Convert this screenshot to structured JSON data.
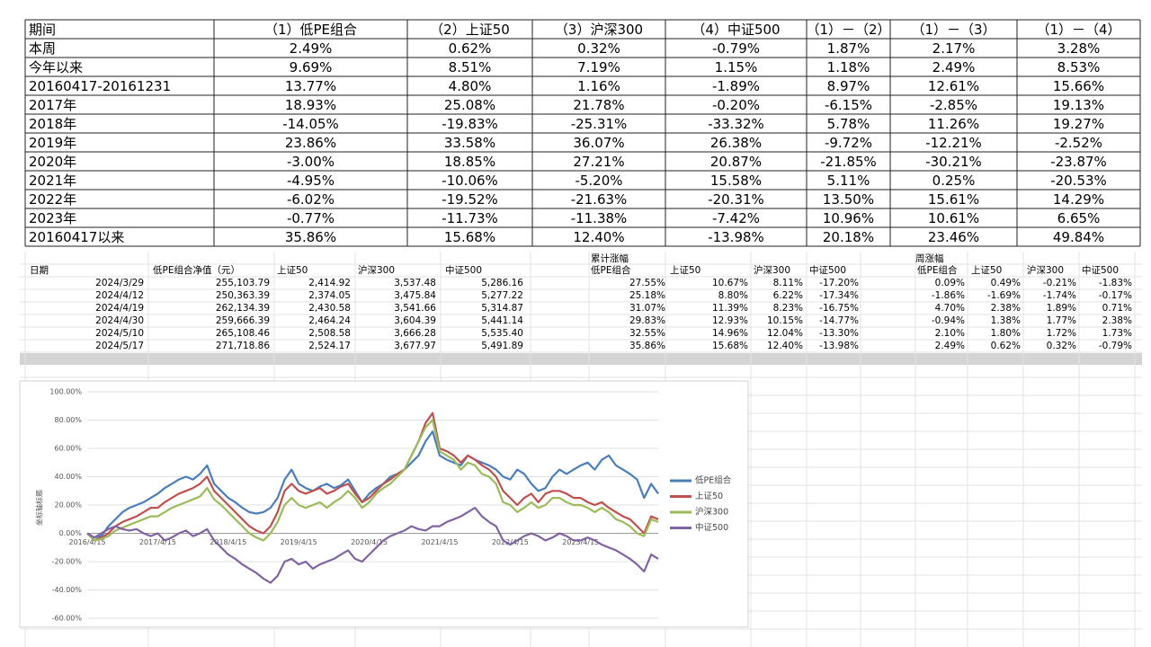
{
  "table": {
    "header": [
      "期间",
      "（1）低PE组合",
      "（2）上证50",
      "（3）沪深300",
      "（4）中证500",
      "（1）－（2）",
      "（1）－（3）",
      "（1）－（4）"
    ],
    "rows": [
      [
        "本周",
        "2.49%",
        "0.62%",
        "0.32%",
        "-0.79%",
        "1.87%",
        "2.17%",
        "3.28%"
      ],
      [
        "今年以来",
        "9.69%",
        "8.51%",
        "7.19%",
        "1.15%",
        "1.18%",
        "2.49%",
        "8.53%"
      ],
      [
        "20160417-20161231",
        "13.77%",
        "4.80%",
        "1.16%",
        "-1.89%",
        "8.97%",
        "12.61%",
        "15.66%"
      ],
      [
        "2017年",
        "18.93%",
        "25.08%",
        "21.78%",
        "-0.20%",
        "-6.15%",
        "-2.85%",
        "19.13%"
      ],
      [
        "2018年",
        "-14.05%",
        "-19.83%",
        "-25.31%",
        "-33.32%",
        "5.78%",
        "11.26%",
        "19.27%"
      ],
      [
        "2019年",
        "23.86%",
        "33.58%",
        "36.07%",
        "26.38%",
        "-9.72%",
        "-12.21%",
        "-2.52%"
      ],
      [
        "2020年",
        "-3.00%",
        "18.85%",
        "27.21%",
        "20.87%",
        "-21.85%",
        "-30.21%",
        "-23.87%"
      ],
      [
        "2021年",
        "-4.95%",
        "-10.06%",
        "-5.20%",
        "15.58%",
        "5.11%",
        "0.25%",
        "-20.53%"
      ],
      [
        "2022年",
        "-6.02%",
        "-19.52%",
        "-21.63%",
        "-20.31%",
        "13.50%",
        "15.61%",
        "14.29%"
      ],
      [
        "2023年",
        "-0.77%",
        "-11.73%",
        "-11.38%",
        "-7.42%",
        "10.96%",
        "10.61%",
        "6.65%"
      ],
      [
        "20160417以来",
        "35.86%",
        "15.68%",
        "12.40%",
        "-13.98%",
        "20.18%",
        "23.46%",
        "49.84%"
      ]
    ]
  },
  "weekly_table": {
    "group_headers": [
      "累计涨幅",
      "周涨幅"
    ],
    "header": [
      "日期",
      "低PE组合净值（元）",
      "上证50",
      "沪深300",
      "中证500",
      "低PE组合",
      "上证50",
      "沪深300",
      "中证500",
      "低PE组合",
      "上证50",
      "沪深300",
      "中证500"
    ],
    "rows": [
      [
        "2024/3/29",
        "255,103.79",
        "2,414.92",
        "3,537.48",
        "5,286.16",
        "27.55%",
        "10.67%",
        "8.11%",
        "-17.20%",
        "0.09%",
        "0.49%",
        "-0.21%",
        "-1.83%"
      ],
      [
        "2024/4/12",
        "250,363.39",
        "2,374.05",
        "3,475.84",
        "5,277.22",
        "25.18%",
        "8.80%",
        "6.22%",
        "-17.34%",
        "-1.86%",
        "-1.69%",
        "-1.74%",
        "-0.17%"
      ],
      [
        "2024/4/19",
        "262,134.39",
        "2,430.58",
        "3,541.66",
        "5,314.87",
        "31.07%",
        "11.39%",
        "8.23%",
        "-16.75%",
        "4.70%",
        "2.38%",
        "1.89%",
        "0.71%"
      ],
      [
        "2024/4/30",
        "259,666.39",
        "2,464.24",
        "3,604.39",
        "5,441.14",
        "29.83%",
        "12.93%",
        "10.15%",
        "-14.77%",
        "-0.94%",
        "1.38%",
        "1.77%",
        "2.38%"
      ],
      [
        "2024/5/10",
        "265,108.46",
        "2,508.58",
        "3,666.28",
        "5,535.40",
        "32.55%",
        "14.96%",
        "12.04%",
        "-13.30%",
        "2.10%",
        "1.80%",
        "1.72%",
        "1.73%"
      ],
      [
        "2024/5/17",
        "271,718.86",
        "2,524.17",
        "3,677.97",
        "5,491.89",
        "35.86%",
        "15.68%",
        "12.40%",
        "-13.98%",
        "2.49%",
        "0.62%",
        "0.32%",
        "-0.79%"
      ]
    ]
  },
  "chart_data": {
    "type": "line",
    "y_label": "坐标轴标题",
    "grid": true,
    "legend": "right",
    "categories": [
      "2016/4/15",
      null,
      null,
      null,
      null,
      null,
      null,
      null,
      null,
      null,
      "2017/4/15",
      null,
      null,
      null,
      null,
      null,
      null,
      null,
      null,
      null,
      "2018/4/15",
      null,
      null,
      null,
      null,
      null,
      null,
      null,
      null,
      null,
      "2019/4/15",
      null,
      null,
      null,
      null,
      null,
      null,
      null,
      null,
      null,
      "2020/4/15",
      null,
      null,
      null,
      null,
      null,
      null,
      null,
      null,
      null,
      "2021/4/15",
      null,
      null,
      null,
      null,
      null,
      null,
      null,
      null,
      null,
      "2022/4/15",
      null,
      null,
      null,
      null,
      null,
      null,
      null,
      null,
      null,
      "2023/4/15",
      null,
      null,
      null,
      null,
      null,
      null,
      null,
      null,
      null,
      null,
      null
    ],
    "ylim": [
      -60,
      100
    ],
    "yticks": [
      {
        "value": -60,
        "label": "-60.00%"
      },
      {
        "value": -40,
        "label": "-40.00%"
      },
      {
        "value": -20,
        "label": "-20.00%"
      },
      {
        "value": 0,
        "label": "0.00%"
      },
      {
        "value": 20,
        "label": "20.00%"
      },
      {
        "value": 40,
        "label": "40.00%"
      },
      {
        "value": 60,
        "label": "60.00%"
      },
      {
        "value": 80,
        "label": "80.00%"
      },
      {
        "value": 100,
        "label": "100.00%"
      }
    ],
    "series": [
      {
        "name": "低PE组合",
        "color": "#4a7ebb",
        "values": [
          0,
          -3,
          -2,
          5,
          10,
          15,
          18,
          20,
          22,
          25,
          28,
          32,
          35,
          38,
          40,
          38,
          42,
          48,
          35,
          30,
          25,
          22,
          18,
          15,
          14,
          15,
          18,
          25,
          38,
          45,
          35,
          32,
          30,
          33,
          35,
          32,
          34,
          38,
          30,
          22,
          28,
          32,
          35,
          40,
          42,
          45,
          50,
          55,
          65,
          72,
          55,
          52,
          50,
          48,
          55,
          52,
          50,
          48,
          45,
          40,
          38,
          45,
          42,
          35,
          30,
          32,
          40,
          45,
          42,
          45,
          48,
          50,
          45,
          52,
          55,
          48,
          45,
          42,
          38,
          25,
          35,
          28
        ]
      },
      {
        "name": "上证50",
        "color": "#c0504d",
        "values": [
          0,
          -5,
          -3,
          0,
          5,
          8,
          10,
          12,
          15,
          18,
          18,
          22,
          25,
          28,
          30,
          32,
          35,
          40,
          30,
          25,
          20,
          15,
          10,
          5,
          2,
          0,
          5,
          15,
          30,
          35,
          30,
          28,
          30,
          32,
          28,
          30,
          33,
          35,
          28,
          22,
          25,
          30,
          35,
          38,
          42,
          45,
          55,
          65,
          78,
          85,
          60,
          58,
          55,
          50,
          55,
          52,
          48,
          45,
          40,
          30,
          25,
          20,
          25,
          28,
          22,
          28,
          30,
          30,
          28,
          25,
          25,
          22,
          20,
          22,
          18,
          15,
          12,
          10,
          5,
          0,
          12,
          10
        ]
      },
      {
        "name": "沪深300",
        "color": "#9bbb59",
        "values": [
          0,
          -5,
          -4,
          -2,
          2,
          4,
          6,
          8,
          10,
          12,
          12,
          15,
          18,
          20,
          22,
          24,
          26,
          32,
          24,
          20,
          15,
          10,
          5,
          0,
          -3,
          -5,
          0,
          8,
          20,
          25,
          20,
          18,
          20,
          22,
          18,
          22,
          25,
          30,
          25,
          18,
          22,
          28,
          32,
          35,
          40,
          45,
          55,
          65,
          75,
          80,
          58,
          55,
          52,
          45,
          50,
          48,
          42,
          40,
          35,
          22,
          20,
          15,
          18,
          22,
          18,
          20,
          25,
          25,
          22,
          20,
          20,
          18,
          15,
          18,
          15,
          10,
          8,
          5,
          0,
          -2,
          10,
          8
        ]
      },
      {
        "name": "中证500",
        "color": "#8064a2",
        "values": [
          0,
          -3,
          0,
          3,
          5,
          3,
          2,
          3,
          0,
          -2,
          0,
          -5,
          -3,
          0,
          2,
          -2,
          0,
          3,
          -5,
          -10,
          -15,
          -18,
          -22,
          -25,
          -28,
          -32,
          -35,
          -30,
          -20,
          -18,
          -22,
          -20,
          -25,
          -22,
          -20,
          -18,
          -15,
          -12,
          -18,
          -20,
          -15,
          -10,
          -5,
          -2,
          0,
          2,
          5,
          3,
          2,
          5,
          5,
          8,
          10,
          12,
          15,
          18,
          12,
          8,
          5,
          -5,
          -8,
          -5,
          -2,
          0,
          -2,
          -5,
          -3,
          0,
          -2,
          -5,
          -5,
          -3,
          -5,
          -8,
          -10,
          -12,
          -15,
          -18,
          -22,
          -27,
          -15,
          -18
        ]
      }
    ]
  }
}
